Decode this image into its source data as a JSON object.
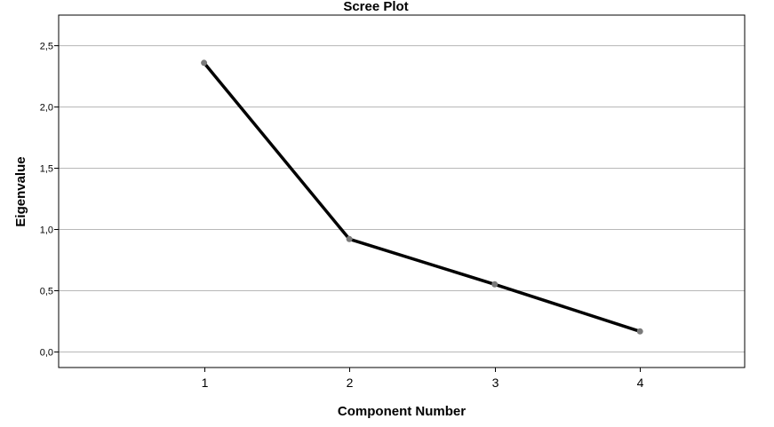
{
  "chart_data": {
    "type": "line",
    "title": "Scree Plot",
    "xlabel": "Component Number",
    "ylabel": "Eigenvalue",
    "x": [
      1,
      2,
      3,
      4
    ],
    "x_tick_labels": [
      "1",
      "2",
      "3",
      "4"
    ],
    "values": [
      2.36,
      0.92,
      0.55,
      0.165
    ],
    "ylim": [
      -0.13,
      2.75
    ],
    "xlim": [
      0,
      4.72
    ],
    "y_ticks": [
      0.0,
      0.5,
      1.0,
      1.5,
      2.0,
      2.5
    ],
    "y_tick_labels": [
      "0,0",
      "0,5",
      "1,0",
      "1,5",
      "2,0",
      "2,5"
    ],
    "grid": true,
    "colors": {
      "line": "#000000",
      "marker": "#7a7a7a",
      "grid": "#b8b8b8"
    }
  }
}
